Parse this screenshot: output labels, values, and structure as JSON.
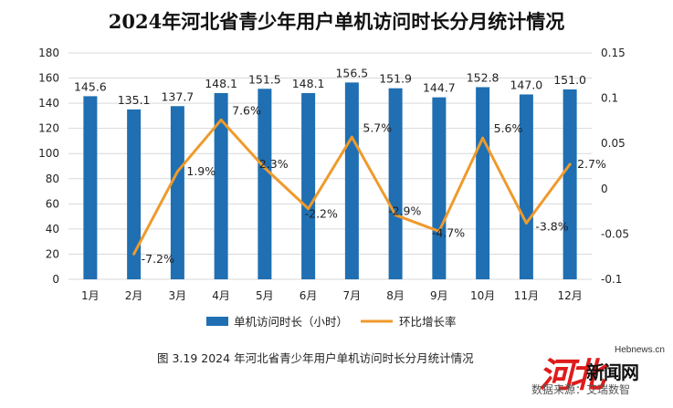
{
  "title": "2024年河北省青少年用户单机访问时长分月统计情况",
  "caption": "图 3.19   2024 年河北省青少年用户单机访问时长分月统计情况",
  "watermark": {
    "site": "Hebnews.cn",
    "logo": "河北",
    "name": "新闻网",
    "source": "数据来源：艾瑞数智"
  },
  "colors": {
    "bar": "#1f6fb2",
    "line": "#ef9a2c",
    "grid": "#d9d9d9",
    "text": "#222222"
  },
  "chart_data": {
    "type": "bar",
    "categories": [
      "1月",
      "2月",
      "3月",
      "4月",
      "5月",
      "6月",
      "7月",
      "8月",
      "9月",
      "10月",
      "11月",
      "12月"
    ],
    "series": [
      {
        "name": "单机访问时长（小时）",
        "type": "bar",
        "axis": "left",
        "values": [
          145.6,
          135.1,
          137.7,
          148.1,
          151.5,
          148.1,
          156.5,
          151.9,
          144.7,
          152.8,
          147.0,
          151.0
        ],
        "labels": [
          "145.6",
          "135.1",
          "137.7",
          "148.1",
          "151.5",
          "148.1",
          "156.5",
          "151.9",
          "144.7",
          "152.8",
          "147.0",
          "151.0"
        ]
      },
      {
        "name": "环比增长率",
        "type": "line",
        "axis": "right",
        "values": [
          null,
          -0.072,
          0.019,
          0.076,
          0.023,
          -0.022,
          0.057,
          -0.029,
          -0.047,
          0.056,
          -0.038,
          0.027
        ],
        "labels": [
          "",
          "-7.2%",
          "1.9%",
          "7.6%",
          "2.3%",
          "-2.2%",
          "5.7%",
          "-2.9%",
          "-4.7%",
          "5.6%",
          "-3.8%",
          "2.7%"
        ]
      }
    ],
    "y_left": {
      "min": 0,
      "max": 180,
      "ticks": [
        "0",
        "20",
        "40",
        "60",
        "80",
        "100",
        "120",
        "140",
        "160",
        "180"
      ]
    },
    "y_right": {
      "min": -0.1,
      "max": 0.15,
      "ticks": [
        "-0.1",
        "-0.05",
        "0",
        "0.05",
        "0.1",
        "0.15"
      ]
    },
    "grid": true,
    "legend": "bottom"
  }
}
